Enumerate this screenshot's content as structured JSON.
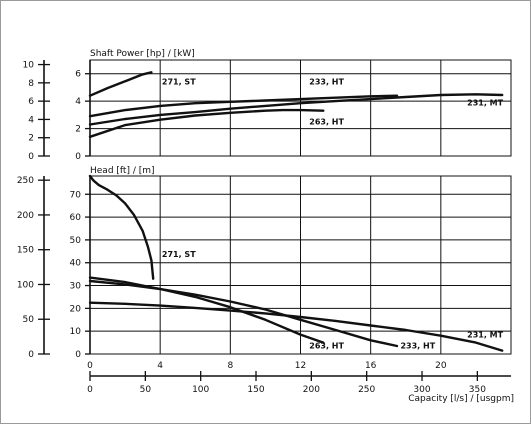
{
  "chart_data": [
    {
      "type": "line",
      "title": "Shaft Power [hp] / [kW]",
      "xlabel": "",
      "ylabel": "",
      "x_units": "l/s",
      "xlim": [
        0,
        24
      ],
      "ylim_kw": [
        0,
        7
      ],
      "ylim_hp": [
        0,
        10.5
      ],
      "x_ticks": [
        0,
        4,
        8,
        12,
        16,
        20
      ],
      "y_ticks_kw": [
        0,
        2,
        4,
        6
      ],
      "y_ticks_hp": [
        0,
        2,
        4,
        6,
        8,
        10
      ],
      "grid": true,
      "series": [
        {
          "name": "271, ST",
          "label_at": [
            4.1,
            5.2
          ],
          "x": [
            0,
            1,
            2,
            3,
            3.5
          ],
          "y": [
            4.4,
            4.95,
            5.45,
            5.95,
            6.1
          ]
        },
        {
          "name": "233, HT",
          "label_at": [
            12.5,
            5.2
          ],
          "x": [
            0,
            2,
            4,
            6,
            8,
            10,
            12,
            14,
            16,
            17.5
          ],
          "y": [
            2.9,
            3.35,
            3.65,
            3.85,
            3.95,
            4.05,
            4.15,
            4.25,
            4.35,
            4.4
          ]
        },
        {
          "name": "231, MT",
          "label_at": [
            21.5,
            3.7
          ],
          "x": [
            0,
            2,
            4,
            6,
            8,
            10,
            12,
            14,
            16,
            18,
            20,
            22,
            23.5
          ],
          "y": [
            2.3,
            2.7,
            3.0,
            3.2,
            3.45,
            3.65,
            3.85,
            4.0,
            4.15,
            4.3,
            4.45,
            4.5,
            4.45
          ]
        },
        {
          "name": "263, HT",
          "label_at": [
            12.5,
            2.3
          ],
          "x": [
            0,
            2,
            4,
            6,
            8,
            10,
            11,
            12,
            13.3
          ],
          "y": [
            1.4,
            2.25,
            2.65,
            2.95,
            3.15,
            3.3,
            3.35,
            3.35,
            3.3
          ]
        }
      ]
    },
    {
      "type": "line",
      "title": "Head [ft] / [m]",
      "xlabel": "Capacity [l/s] / [usgpm]",
      "ylabel": "",
      "x_units": "l/s",
      "xlim": [
        0,
        24
      ],
      "ylim_m": [
        0,
        78
      ],
      "ylim_ft": [
        0,
        256
      ],
      "x_ticks_ls": [
        0,
        4,
        8,
        12,
        16,
        20
      ],
      "x_ticks_usgpm": [
        0,
        50,
        100,
        150,
        200,
        250,
        300,
        350
      ],
      "y_ticks_m": [
        0,
        10,
        20,
        30,
        40,
        50,
        60,
        70
      ],
      "y_ticks_ft": [
        0,
        50,
        100,
        150,
        200,
        250
      ],
      "grid": true,
      "series": [
        {
          "name": "271, ST",
          "label_at": [
            4.1,
            42.5
          ],
          "x": [
            0,
            0.2,
            0.5,
            1,
            1.5,
            2,
            2.5,
            3,
            3.3,
            3.5,
            3.6
          ],
          "y": [
            78,
            76,
            74,
            72,
            69.5,
            66,
            61,
            54,
            47,
            41,
            33
          ]
        },
        {
          "name": "263, HT",
          "label_at": [
            12.5,
            2.5
          ],
          "x": [
            0,
            2,
            4,
            6,
            8,
            10,
            12,
            13.3
          ],
          "y": [
            33.5,
            31.5,
            28.5,
            25,
            20.5,
            15,
            8.5,
            5
          ]
        },
        {
          "name": "233, HT",
          "label_at": [
            17.7,
            2.5
          ],
          "x": [
            0,
            2,
            4,
            6,
            8,
            10,
            12,
            14,
            16,
            17.5
          ],
          "y": [
            32,
            30.5,
            28.5,
            26,
            23,
            19.5,
            15,
            10.5,
            6,
            3.5
          ]
        },
        {
          "name": "231, MT",
          "label_at": [
            21.5,
            7.2
          ],
          "x": [
            0,
            2,
            4,
            6,
            8,
            10,
            12,
            14,
            16,
            18,
            20,
            22,
            23.5
          ],
          "y": [
            22.5,
            22,
            21.2,
            20.2,
            19,
            17.8,
            16.2,
            14.5,
            12.5,
            10.5,
            8,
            5,
            1.5
          ]
        }
      ]
    }
  ]
}
